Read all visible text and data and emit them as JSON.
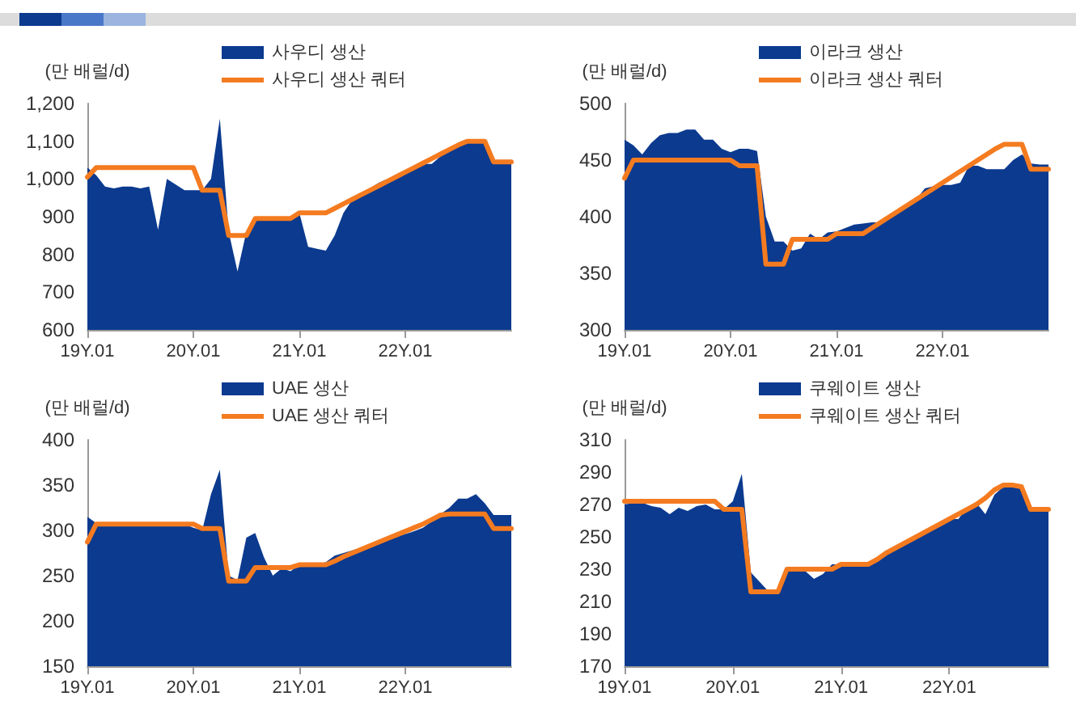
{
  "chart_data": [
    {
      "type": "area",
      "ylabel": "(만 배럴/d)",
      "categories": [
        "19Y.01",
        null,
        null,
        null,
        null,
        null,
        null,
        null,
        null,
        null,
        null,
        null,
        "20Y.01",
        null,
        null,
        null,
        null,
        null,
        null,
        null,
        null,
        null,
        null,
        null,
        "21Y.01",
        null,
        null,
        null,
        null,
        null,
        null,
        null,
        null,
        null,
        null,
        null,
        "22Y.01",
        null,
        null,
        null,
        null,
        null,
        null,
        null,
        null,
        null,
        null,
        null,
        null
      ],
      "ylim": [
        600,
        1200
      ],
      "yticks": [
        600,
        700,
        800,
        900,
        {
          "value": 1000,
          "label": "1,000"
        },
        {
          "value": 1100,
          "label": "1,100"
        },
        {
          "value": 1200,
          "label": "1,200"
        }
      ],
      "grid": false,
      "legend": "top",
      "marker": "none",
      "series": [
        {
          "name": "사우디 생산",
          "color": "#0b3a8f",
          "values": [
            1030,
            1010,
            980,
            975,
            980,
            980,
            975,
            980,
            865,
            1000,
            985,
            970,
            970,
            970,
            1000,
            1160,
            860,
            755,
            860,
            900,
            900,
            900,
            900,
            900,
            910,
            820,
            815,
            810,
            850,
            910,
            945,
            960,
            975,
            990,
            1000,
            1010,
            1020,
            1030,
            1040,
            1040,
            1060,
            1080,
            1090,
            1100,
            1100,
            1095,
            1045,
            1045,
            1045
          ]
        },
        {
          "name": "사우디 생산 쿼터",
          "type": "line",
          "color": "#f47b20",
          "values": [
            1005,
            1030,
            1030,
            1030,
            1030,
            1030,
            1030,
            1030,
            1030,
            1030,
            1030,
            1030,
            1030,
            970,
            970,
            970,
            850,
            850,
            850,
            895,
            895,
            895,
            895,
            895,
            910,
            910,
            910,
            910,
            922,
            934,
            946,
            958,
            970,
            982,
            994,
            1006,
            1018,
            1030,
            1042,
            1054,
            1066,
            1078,
            1090,
            1100,
            1100,
            1100,
            1045,
            1045,
            1045
          ]
        }
      ]
    },
    {
      "type": "area",
      "ylabel": "(만 배럴/d)",
      "categories": [
        "19Y.01",
        null,
        null,
        null,
        null,
        null,
        null,
        null,
        null,
        null,
        null,
        null,
        "20Y.01",
        null,
        null,
        null,
        null,
        null,
        null,
        null,
        null,
        null,
        null,
        null,
        "21Y.01",
        null,
        null,
        null,
        null,
        null,
        null,
        null,
        null,
        null,
        null,
        null,
        "22Y.01",
        null,
        null,
        null,
        null,
        null,
        null,
        null,
        null,
        null,
        null,
        null,
        null
      ],
      "ylim": [
        300,
        500
      ],
      "yticks": [
        300,
        350,
        400,
        450,
        500
      ],
      "grid": false,
      "legend": "top",
      "marker": "none",
      "series": [
        {
          "name": "이라크 생산",
          "color": "#0b3a8f",
          "values": [
            468,
            463,
            455,
            465,
            472,
            474,
            474,
            477,
            477,
            468,
            468,
            460,
            457,
            460,
            460,
            458,
            400,
            378,
            378,
            370,
            372,
            385,
            380,
            386,
            387,
            390,
            393,
            394,
            395,
            395,
            400,
            405,
            410,
            415,
            425,
            427,
            428,
            428,
            430,
            445,
            445,
            442,
            442,
            442,
            450,
            455,
            447,
            446,
            446
          ]
        },
        {
          "name": "이라크 생산 쿼터",
          "type": "line",
          "color": "#f47b20",
          "values": [
            434,
            450,
            450,
            450,
            450,
            450,
            450,
            450,
            450,
            450,
            450,
            450,
            450,
            445,
            445,
            445,
            358,
            358,
            358,
            380,
            380,
            380,
            380,
            380,
            385,
            385,
            385,
            385,
            390,
            395,
            400,
            405,
            410,
            415,
            420,
            425,
            430,
            435,
            440,
            445,
            450,
            455,
            460,
            464,
            464,
            464,
            442,
            442,
            442
          ]
        }
      ]
    },
    {
      "type": "area",
      "ylabel": "(만 배럴/d)",
      "categories": [
        "19Y.01",
        null,
        null,
        null,
        null,
        null,
        null,
        null,
        null,
        null,
        null,
        null,
        "20Y.01",
        null,
        null,
        null,
        null,
        null,
        null,
        null,
        null,
        null,
        null,
        null,
        "21Y.01",
        null,
        null,
        null,
        null,
        null,
        null,
        null,
        null,
        null,
        null,
        null,
        "22Y.01",
        null,
        null,
        null,
        null,
        null,
        null,
        null,
        null,
        null,
        null,
        null,
        null
      ],
      "ylim": [
        150,
        400
      ],
      "yticks": [
        150,
        200,
        250,
        300,
        350,
        400
      ],
      "grid": false,
      "legend": "top",
      "marker": "none",
      "series": [
        {
          "name": "UAE 생산",
          "color": "#0b3a8f",
          "values": [
            315,
            308,
            307,
            307,
            307,
            307,
            307,
            307,
            307,
            307,
            307,
            307,
            303,
            300,
            340,
            367,
            250,
            245,
            292,
            297,
            270,
            250,
            258,
            255,
            262,
            262,
            262,
            265,
            272,
            275,
            278,
            281,
            284,
            287,
            290,
            293,
            296,
            299,
            303,
            310,
            318,
            325,
            335,
            335,
            340,
            330,
            317,
            317,
            317
          ]
        },
        {
          "name": "UAE 생산 쿼터",
          "type": "line",
          "color": "#f47b20",
          "values": [
            287,
            307,
            307,
            307,
            307,
            307,
            307,
            307,
            307,
            307,
            307,
            307,
            307,
            302,
            302,
            302,
            244,
            244,
            244,
            259,
            259,
            259,
            259,
            259,
            262,
            262,
            262,
            262,
            266,
            271,
            275,
            279,
            283,
            287,
            291,
            295,
            299,
            303,
            307,
            312,
            317,
            318,
            318,
            318,
            318,
            318,
            302,
            302,
            302
          ]
        }
      ]
    },
    {
      "type": "area",
      "ylabel": "(만 배럴/d)",
      "categories": [
        "19Y.01",
        null,
        null,
        null,
        null,
        null,
        null,
        null,
        null,
        null,
        null,
        null,
        "20Y.01",
        null,
        null,
        null,
        null,
        null,
        null,
        null,
        null,
        null,
        null,
        null,
        "21Y.01",
        null,
        null,
        null,
        null,
        null,
        null,
        null,
        null,
        null,
        null,
        null,
        "22Y.01",
        null,
        null,
        null,
        null,
        null,
        null,
        null,
        null,
        null,
        null,
        null
      ],
      "ylim": [
        170,
        310
      ],
      "yticks": [
        170,
        190,
        210,
        230,
        250,
        270,
        290,
        310
      ],
      "grid": false,
      "legend": "top",
      "marker": "none",
      "series": [
        {
          "name": "쿠웨이트 생산",
          "color": "#0b3a8f",
          "values": [
            270,
            271,
            271,
            269,
            268,
            264,
            268,
            266,
            269,
            270,
            267,
            267,
            272,
            289,
            228,
            222,
            216,
            216,
            229,
            229,
            229,
            224,
            227,
            233,
            233,
            232,
            233,
            233,
            236,
            240,
            243,
            246,
            249,
            252,
            255,
            258,
            261,
            261,
            268,
            271,
            264,
            276,
            281,
            281,
            280,
            267,
            267,
            267
          ]
        },
        {
          "name": "쿠웨이트 생산 쿼터",
          "type": "line",
          "color": "#f47b20",
          "values": [
            272,
            272,
            272,
            272,
            272,
            272,
            272,
            272,
            272,
            272,
            272,
            267,
            267,
            267,
            216,
            216,
            216,
            216,
            230,
            230,
            230,
            230,
            230,
            230,
            233,
            233,
            233,
            233,
            236,
            240,
            243,
            246,
            249,
            252,
            255,
            258,
            261,
            264,
            267,
            270,
            274,
            279,
            282,
            282,
            281,
            267,
            267,
            267
          ]
        }
      ]
    }
  ]
}
